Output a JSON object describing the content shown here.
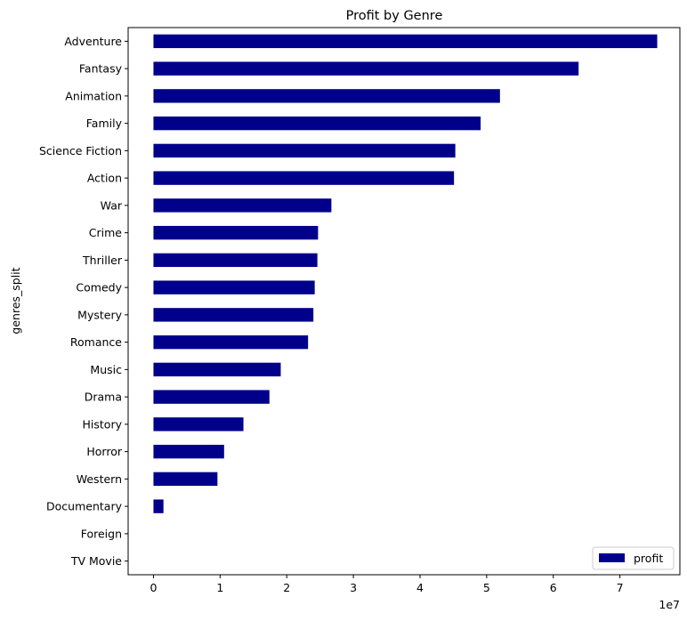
{
  "chart_data": {
    "type": "bar",
    "orientation": "horizontal",
    "title": "Profit by Genre",
    "ylabel": "genres_split",
    "xlabel": "",
    "x_offset_text": "1e7",
    "xlim": [
      -0.38,
      7.9
    ],
    "x_ticks": [
      0,
      1,
      2,
      3,
      4,
      5,
      6,
      7
    ],
    "x_scale": 10000000,
    "bar_color": "#00008b",
    "legend": {
      "position": "lower right",
      "entries": [
        "profit"
      ]
    },
    "categories": [
      "Adventure",
      "Fantasy",
      "Animation",
      "Family",
      "Science Fiction",
      "Action",
      "War",
      "Crime",
      "Thriller",
      "Comedy",
      "Mystery",
      "Romance",
      "Music",
      "Drama",
      "History",
      "Horror",
      "Western",
      "Documentary",
      "Foreign",
      "TV Movie"
    ],
    "series": [
      {
        "name": "profit",
        "values": [
          75600000,
          63800000,
          52000000,
          49100000,
          45300000,
          45100000,
          26700000,
          24700000,
          24600000,
          24200000,
          24000000,
          23200000,
          19100000,
          17400000,
          13500000,
          10600000,
          9600000,
          1500000,
          0,
          0
        ]
      }
    ]
  }
}
